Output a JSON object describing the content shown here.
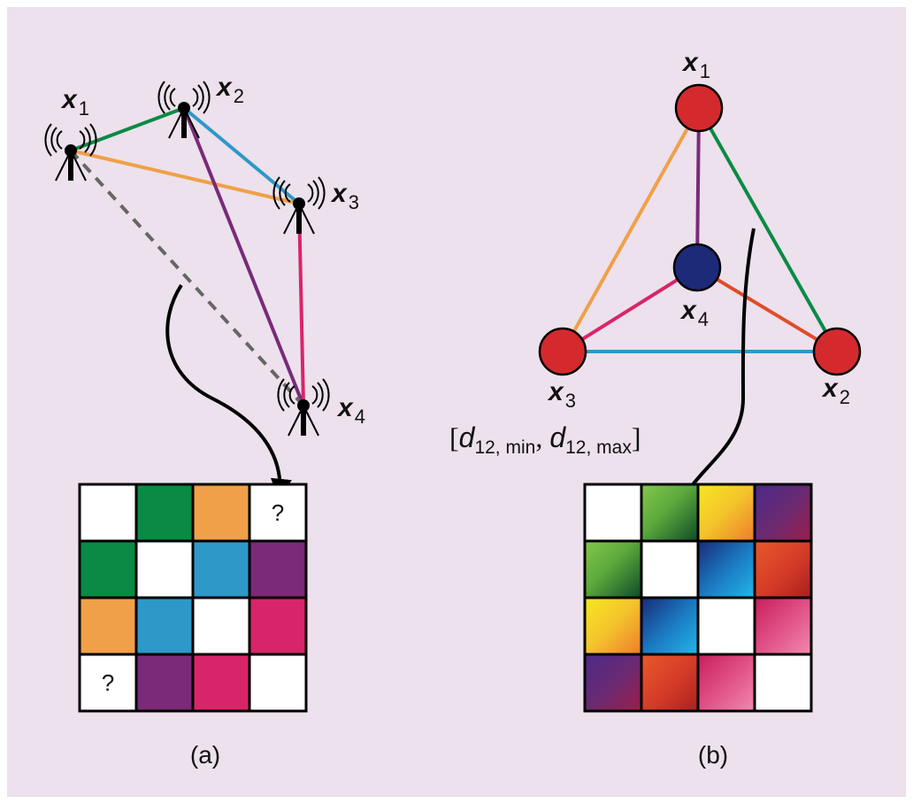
{
  "colors": {
    "background": "#ece1ec",
    "green": "#0a8a45",
    "orange": "#f0a048",
    "blue": "#2e98c8",
    "purple": "#7a2a78",
    "magenta": "#d8256a",
    "dashed": "#666666",
    "red_node": "#d42a2e",
    "navy_node": "#1d2a78",
    "red_edge": "#e04c2a"
  },
  "panel_a": {
    "nodes": [
      {
        "name": "x",
        "sub": "1",
        "icon": "antenna-icon"
      },
      {
        "name": "x",
        "sub": "2",
        "icon": "antenna-icon"
      },
      {
        "name": "x",
        "sub": "3",
        "icon": "antenna-icon"
      },
      {
        "name": "x",
        "sub": "4",
        "icon": "antenna-icon"
      }
    ],
    "matrix": [
      [
        "white",
        "green",
        "orange",
        "?"
      ],
      [
        "green",
        "white",
        "blue",
        "purple"
      ],
      [
        "orange",
        "blue",
        "white",
        "magenta"
      ],
      [
        "?",
        "purple",
        "magenta",
        "white"
      ]
    ],
    "unknown_symbol": "?",
    "caption": "(a)"
  },
  "panel_b": {
    "nodes": [
      {
        "name": "x",
        "sub": "1"
      },
      {
        "name": "x",
        "sub": "2"
      },
      {
        "name": "x",
        "sub": "3"
      },
      {
        "name": "x",
        "sub": "4"
      }
    ],
    "interval": {
      "open": "[",
      "d1": "d",
      "sub1": "12, min",
      "comma": ", ",
      "d2": "d",
      "sub2": "12, max",
      "close": "]"
    },
    "matrix": [
      [
        "white",
        "green",
        "orange",
        "purple"
      ],
      [
        "green",
        "white",
        "blue",
        "red"
      ],
      [
        "orange",
        "blue",
        "white",
        "magenta"
      ],
      [
        "purple",
        "red",
        "magenta",
        "white"
      ]
    ],
    "caption": "(b)"
  }
}
